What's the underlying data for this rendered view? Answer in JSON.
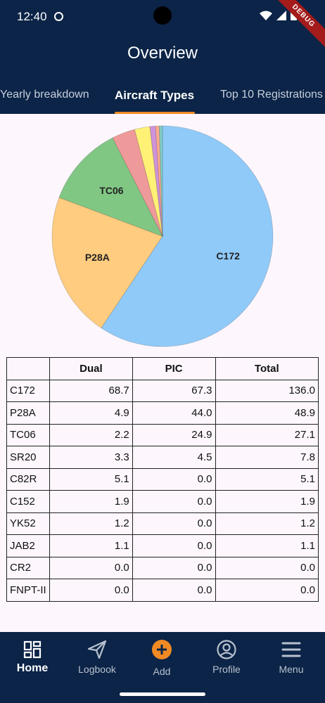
{
  "status_bar": {
    "time": "12:40",
    "debug_banner": "DEBUG"
  },
  "app_bar": {
    "title": "Overview"
  },
  "tabs": [
    {
      "label": "Yearly breakdown",
      "active": false
    },
    {
      "label": "Aircraft Types",
      "active": true
    },
    {
      "label": "Top 10 Registrations",
      "active": false
    }
  ],
  "chart_data": {
    "type": "pie",
    "slices": [
      {
        "label": "C172",
        "value": 136.0,
        "color": "#90caf9",
        "shown_label": "C172"
      },
      {
        "label": "P28A",
        "value": 48.9,
        "color": "#ffcc80",
        "shown_label": "P28A"
      },
      {
        "label": "TC06",
        "value": 27.1,
        "color": "#81c784",
        "shown_label": "TC06"
      },
      {
        "label": "SR20",
        "value": 7.8,
        "color": "#ef9a9a",
        "shown_label": ""
      },
      {
        "label": "C82R",
        "value": 5.1,
        "color": "#fff176",
        "shown_label": ""
      },
      {
        "label": "C152",
        "value": 1.9,
        "color": "#ce93d8",
        "shown_label": ""
      },
      {
        "label": "YK52",
        "value": 1.2,
        "color": "#ffab91",
        "shown_label": ""
      },
      {
        "label": "JAB2",
        "value": 1.1,
        "color": "#80cbc4",
        "shown_label": ""
      }
    ]
  },
  "table": {
    "headers": [
      "",
      "Dual",
      "PIC",
      "Total"
    ],
    "rows": [
      [
        "C172",
        "68.7",
        "67.3",
        "136.0"
      ],
      [
        "P28A",
        "4.9",
        "44.0",
        "48.9"
      ],
      [
        "TC06",
        "2.2",
        "24.9",
        "27.1"
      ],
      [
        "SR20",
        "3.3",
        "4.5",
        "7.8"
      ],
      [
        "C82R",
        "5.1",
        "0.0",
        "5.1"
      ],
      [
        "C152",
        "1.9",
        "0.0",
        "1.9"
      ],
      [
        "YK52",
        "1.2",
        "0.0",
        "1.2"
      ],
      [
        "JAB2",
        "1.1",
        "0.0",
        "1.1"
      ],
      [
        "CR2",
        "0.0",
        "0.0",
        "0.0"
      ],
      [
        "FNPT-II",
        "0.0",
        "0.0",
        "0.0"
      ]
    ]
  },
  "bottom_nav": [
    {
      "label": "Home",
      "icon": "dashboard-icon",
      "active": true
    },
    {
      "label": "Logbook",
      "icon": "send-icon",
      "active": false
    },
    {
      "label": "Add",
      "icon": "add-circle-icon",
      "active": false,
      "accent": "#f08a24"
    },
    {
      "label": "Profile",
      "icon": "account-circle-icon",
      "active": false
    },
    {
      "label": "Menu",
      "icon": "menu-icon",
      "active": false
    }
  ]
}
